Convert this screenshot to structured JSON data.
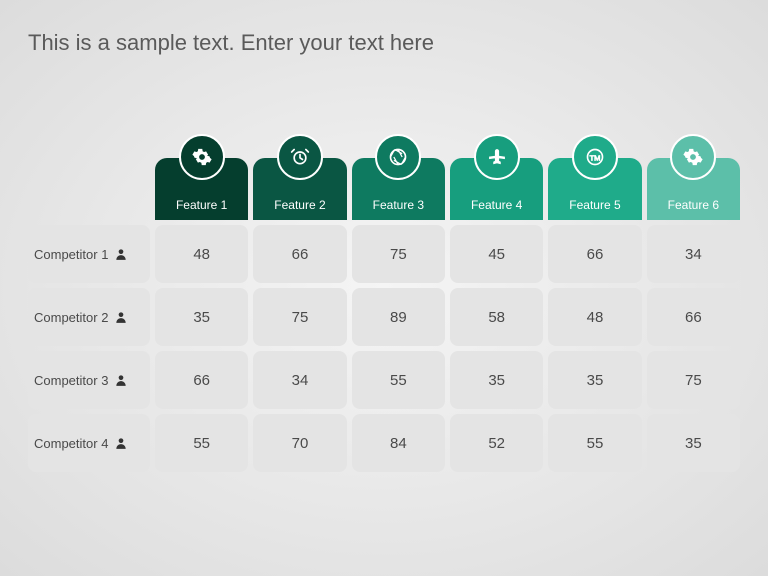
{
  "title": "This is a sample text. Enter your text here",
  "table": {
    "type": "table",
    "background_color": "#e4e4e4",
    "cell_radius": 8,
    "cell_text_color": "#4a4a4a",
    "title_color": "#5a5a5a",
    "title_fontsize": 22,
    "label_fontsize": 13,
    "value_fontsize": 15,
    "features": [
      {
        "label": "Feature 1",
        "color": "#053e2e",
        "icon": "gear-icon"
      },
      {
        "label": "Feature 2",
        "color": "#0a5643",
        "icon": "alarm-icon"
      },
      {
        "label": "Feature 3",
        "color": "#0e7a60",
        "icon": "aperture-icon"
      },
      {
        "label": "Feature 4",
        "color": "#179e7e",
        "icon": "plane-icon"
      },
      {
        "label": "Feature 5",
        "color": "#1fab8a",
        "icon": "tm-icon"
      },
      {
        "label": "Feature 6",
        "color": "#5cbfa9",
        "icon": "gear-icon"
      }
    ],
    "competitors": [
      {
        "label": "Competitor 1",
        "values": [
          48,
          66,
          75,
          45,
          66,
          34
        ]
      },
      {
        "label": "Competitor 2",
        "values": [
          35,
          75,
          89,
          58,
          48,
          66
        ]
      },
      {
        "label": "Competitor 3",
        "values": [
          66,
          34,
          55,
          35,
          35,
          75
        ]
      },
      {
        "label": "Competitor 4",
        "values": [
          55,
          70,
          84,
          52,
          55,
          35
        ]
      }
    ]
  }
}
